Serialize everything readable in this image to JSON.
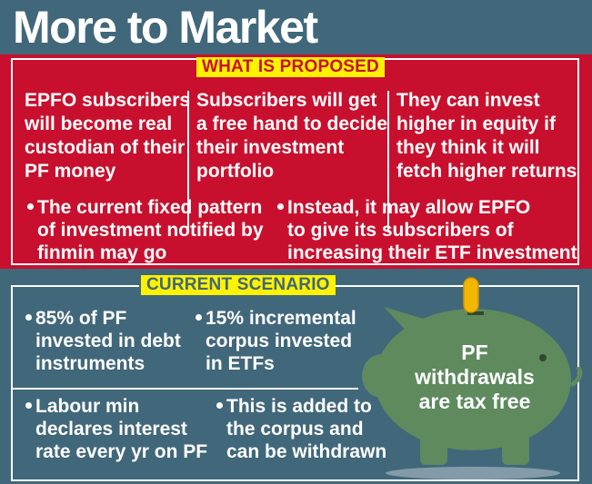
{
  "title": "More to Market",
  "proposed": {
    "heading": "WHAT IS PROPOSED",
    "columns": [
      [
        "EPFO subscribers",
        "will become real",
        "custodian of their",
        "PF money"
      ],
      [
        "Subscribers will get",
        "a free hand to decide",
        "their investment",
        "portfolio"
      ],
      [
        "They can invest",
        "higher in equity if",
        "they think it will",
        "fetch higher returns"
      ]
    ],
    "bullets": [
      [
        "The current fixed pattern",
        "of investment notified by",
        "finmin may go"
      ],
      [
        "Instead, it may allow EPFO",
        "to give its subscribers of",
        "increasing their ETF investment"
      ]
    ]
  },
  "current": {
    "heading": "CURRENT SCENARIO",
    "bullets": [
      [
        "85% of PF",
        "invested in debt",
        "instruments"
      ],
      [
        "15% incremental",
        "corpus invested",
        "in ETFs"
      ],
      [
        "Labour min",
        "declares interest",
        "rate every yr on PF"
      ],
      [
        "This is added to",
        "the corpus and",
        "can be withdrawn"
      ]
    ]
  },
  "piggy": {
    "lines": [
      "PF",
      "withdrawals",
      "are tax free"
    ],
    "icon": "piggy-bank-icon",
    "coin_icon": "coin-icon"
  },
  "colors": {
    "background": "#41677b",
    "red": "#c8102e",
    "yellow": "#fff200",
    "piggy": "#5e8a5e",
    "coin": "#f2b700",
    "white": "#ffffff"
  }
}
